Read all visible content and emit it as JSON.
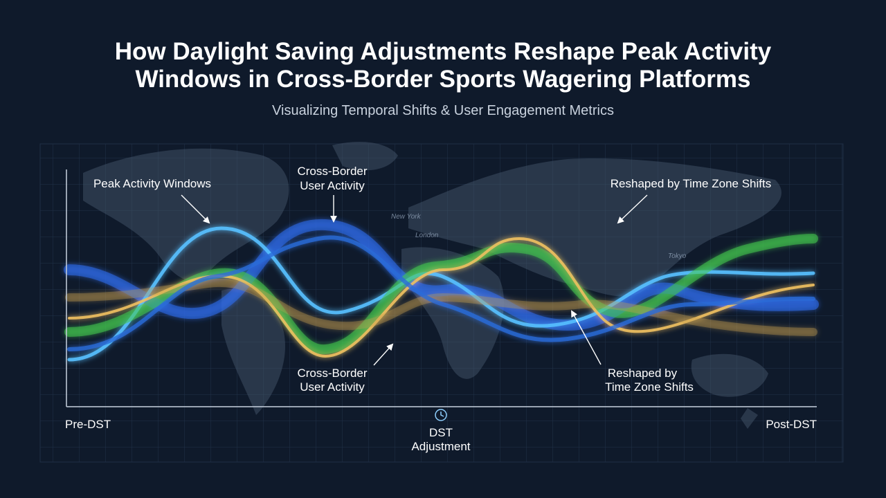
{
  "header": {
    "title_lines": [
      "How Daylight Saving Adjustments Reshape Peak Activity",
      "Windows in Cross-Border Sports Wagering Platforms"
    ],
    "subtitle": "Visualizing Temporal Shifts & User Engagement Metrics"
  },
  "annotations": [
    {
      "lines": [
        "Peak Activity Windows"
      ]
    },
    {
      "lines": [
        "Cross-Border",
        "User Activity"
      ]
    },
    {
      "lines": [
        "Reshaped by Time Zone Shifts"
      ]
    },
    {
      "lines": [
        "Cross-Border",
        "User Activity"
      ]
    },
    {
      "lines": [
        "Reshaped by",
        "Time Zone Shifts"
      ]
    }
  ],
  "axis": {
    "start": "Pre-DST",
    "marker_lines": [
      "DST",
      "Adjustment"
    ],
    "end": "Post-DST"
  },
  "map_labels": [
    "New York",
    "London",
    "Tokyo"
  ]
}
